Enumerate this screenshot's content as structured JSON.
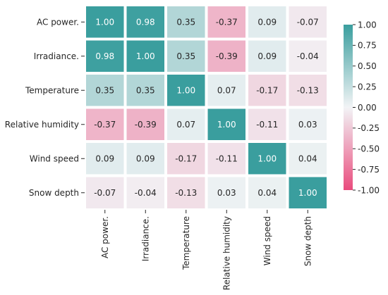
{
  "chart_data": {
    "type": "heatmap",
    "rows": [
      "AC power.",
      "Irradiance.",
      "Temperature",
      "Relative humidity",
      "Wind speed",
      "Snow depth"
    ],
    "columns": [
      "AC power.",
      "Irradiance.",
      "Temperature",
      "Relative humidity",
      "Wind speed",
      "Snow depth"
    ],
    "values": [
      [
        1.0,
        0.98,
        0.35,
        -0.37,
        0.09,
        -0.07
      ],
      [
        0.98,
        1.0,
        0.35,
        -0.39,
        0.09,
        -0.04
      ],
      [
        0.35,
        0.35,
        1.0,
        0.07,
        -0.17,
        -0.13
      ],
      [
        -0.37,
        -0.39,
        0.07,
        1.0,
        -0.11,
        0.03
      ],
      [
        0.09,
        0.09,
        -0.17,
        -0.11,
        1.0,
        0.04
      ],
      [
        -0.07,
        -0.04,
        -0.13,
        0.03,
        0.04,
        1.0
      ]
    ],
    "colorbar": {
      "range": [
        -1.0,
        1.0
      ],
      "ticks": [
        "-1.00",
        "-0.75",
        "-0.50",
        "-0.25",
        "0.00",
        "0.25",
        "0.50",
        "0.75",
        "1.00"
      ],
      "colors": {
        "negative": "#e94b7d",
        "neutral": "#f2f4f6",
        "positive": "#3a9e9e"
      }
    },
    "grid": false,
    "legend": "right"
  }
}
